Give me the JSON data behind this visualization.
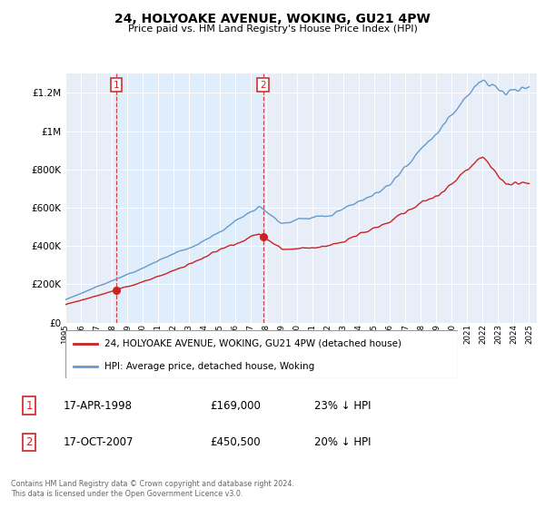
{
  "title": "24, HOLYOAKE AVENUE, WOKING, GU21 4PW",
  "subtitle": "Price paid vs. HM Land Registry's House Price Index (HPI)",
  "legend_line1": "24, HOLYOAKE AVENUE, WOKING, GU21 4PW (detached house)",
  "legend_line2": "HPI: Average price, detached house, Woking",
  "transaction1_date": "17-APR-1998",
  "transaction1_price": "£169,000",
  "transaction1_hpi": "23% ↓ HPI",
  "transaction2_date": "17-OCT-2007",
  "transaction2_price": "£450,500",
  "transaction2_hpi": "20% ↓ HPI",
  "footer": "Contains HM Land Registry data © Crown copyright and database right 2024.\nThis data is licensed under the Open Government Licence v3.0.",
  "hpi_color": "#6699cc",
  "price_color": "#cc2222",
  "marker_color": "#cc2222",
  "shade_color": "#ddeeff",
  "plot_bg_color": "#e8eef8",
  "grid_color": "#ffffff",
  "ylim": [
    0,
    1300000
  ],
  "xlim_start": 1995.0,
  "xlim_end": 2025.5,
  "transaction1_x": 1998.29,
  "transaction1_y": 169000,
  "transaction2_x": 2007.79,
  "transaction2_y": 450500,
  "title_fontsize": 10,
  "subtitle_fontsize": 8.5
}
